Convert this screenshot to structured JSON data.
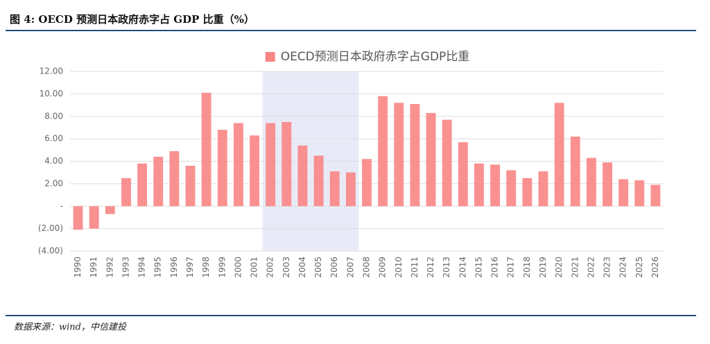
{
  "header": {
    "title": "图 4: OECD 预测日本政府赤字占 GDP 比重（%）"
  },
  "chart_data": {
    "type": "bar",
    "legend": "OECD预测日本政府赤字占GDP比重",
    "legend_position": "top",
    "color": "#f98585",
    "categories": [
      "1990",
      "1991",
      "1992",
      "1993",
      "1994",
      "1995",
      "1996",
      "1997",
      "1998",
      "1999",
      "2000",
      "2001",
      "2002",
      "2003",
      "2004",
      "2005",
      "2006",
      "2007",
      "2008",
      "2009",
      "2010",
      "2011",
      "2012",
      "2013",
      "2014",
      "2015",
      "2016",
      "2017",
      "2018",
      "2019",
      "2020",
      "2021",
      "2022",
      "2023",
      "2024",
      "2025",
      "2026"
    ],
    "values": [
      -2.1,
      -2.0,
      -0.7,
      2.5,
      3.8,
      4.4,
      4.9,
      3.6,
      10.1,
      6.8,
      7.4,
      6.3,
      7.4,
      7.5,
      5.4,
      4.5,
      3.1,
      3.0,
      4.2,
      9.8,
      9.2,
      9.1,
      8.3,
      7.7,
      5.7,
      3.8,
      3.7,
      3.2,
      2.5,
      3.1,
      9.2,
      6.2,
      4.3,
      3.9,
      2.4,
      2.3,
      1.9
    ],
    "ylim": [
      -4,
      12
    ],
    "yticks": [
      {
        "value": -4,
        "label": "(4.00)"
      },
      {
        "value": -2,
        "label": "(2.00)"
      },
      {
        "value": 0,
        "label": "-"
      },
      {
        "value": 2,
        "label": "2.00"
      },
      {
        "value": 4,
        "label": "4.00"
      },
      {
        "value": 6,
        "label": "6.00"
      },
      {
        "value": 8,
        "label": "8.00"
      },
      {
        "value": 10,
        "label": "10.00"
      },
      {
        "value": 12,
        "label": "12.00"
      }
    ],
    "grid": true,
    "highlight": {
      "from": "2002",
      "to": "2007",
      "color": "#e8ebf7"
    }
  },
  "footer": {
    "source": "数据来源：wind，中信建投"
  }
}
